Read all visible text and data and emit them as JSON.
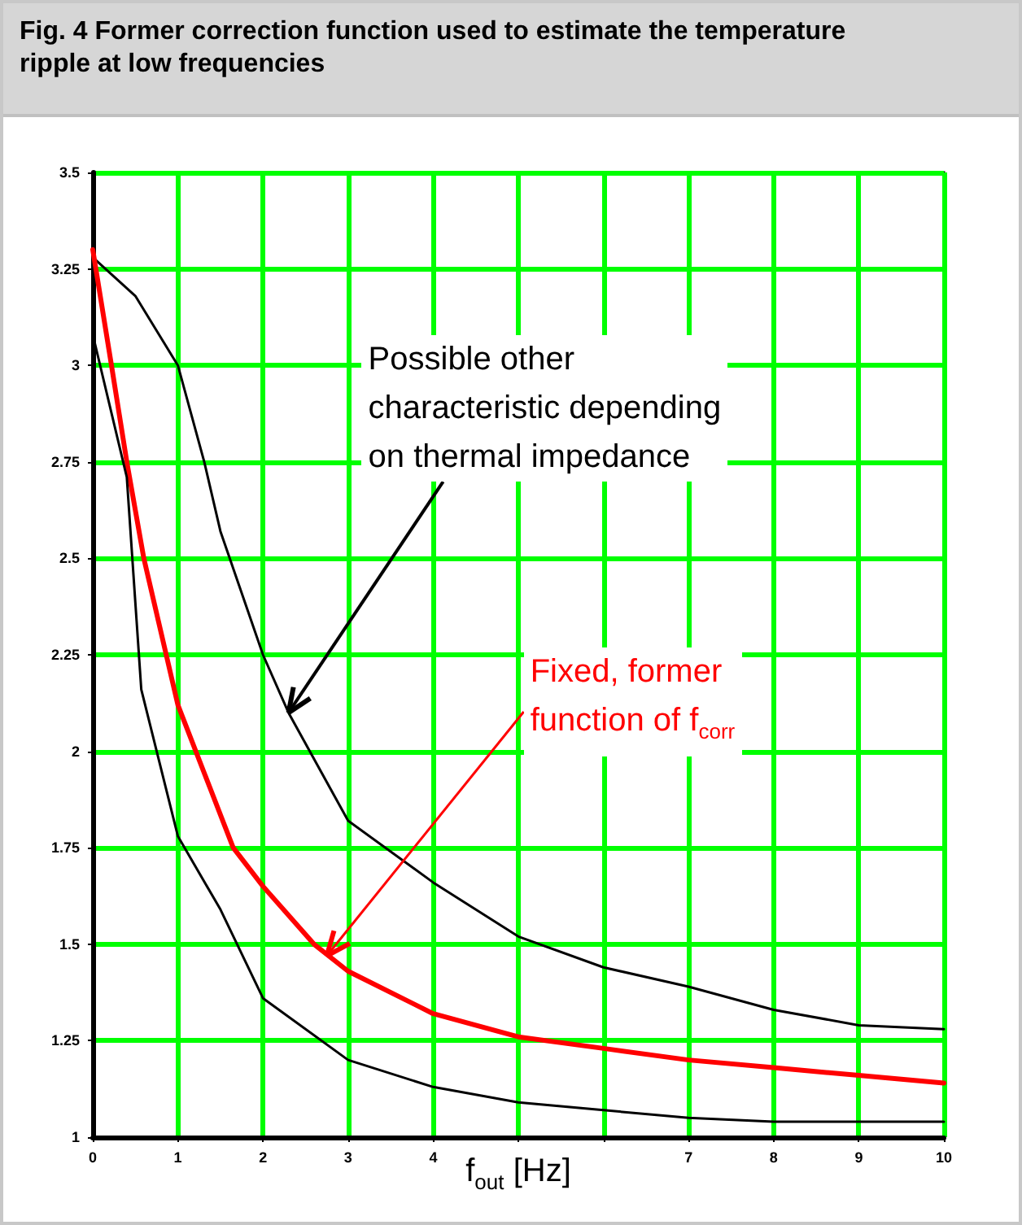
{
  "chart_data": {
    "type": "line",
    "title": "Fig. 4 Former correction function used to estimate the temperature ripple at low frequencies",
    "xlabel": "f$_{out}$ [Hz]",
    "xlim": [
      0,
      10
    ],
    "xticks": [
      0,
      1,
      2,
      3,
      4,
      {
        "value": 5,
        "label": null
      },
      {
        "value": 6,
        "label": null
      },
      7,
      8,
      9,
      10
    ],
    "ylim": [
      1,
      3.5
    ],
    "yticks": [
      1,
      1.25,
      1.5,
      1.75,
      2,
      2.25,
      2.5,
      2.75,
      3,
      3.25,
      3.5
    ],
    "grid": true,
    "marker": "none",
    "line_style": "solid",
    "series": [
      {
        "color": "#000000",
        "x": [
          0,
          0.5,
          1,
          1.31,
          1.5,
          2,
          2.3,
          3,
          4,
          5,
          6,
          7,
          8,
          9,
          10
        ],
        "values": [
          3.28,
          3.18,
          3.0,
          2.75,
          2.57,
          2.25,
          2.1,
          1.82,
          1.66,
          1.52,
          1.44,
          1.39,
          1.33,
          1.29,
          1.28
        ]
      },
      {
        "color": "#ff0000",
        "x": [
          0,
          0.22,
          0.4,
          0.6,
          1,
          1.65,
          2,
          2.6,
          3,
          4,
          5,
          6,
          7,
          8,
          9,
          10
        ],
        "values": [
          3.3,
          3.0,
          2.75,
          2.5,
          2.12,
          1.75,
          1.65,
          1.5,
          1.43,
          1.32,
          1.26,
          1.23,
          1.2,
          1.18,
          1.16,
          1.14
        ]
      },
      {
        "color": "#000000",
        "x": [
          0,
          0.4,
          0.57,
          1,
          1.5,
          2,
          3,
          4,
          5,
          6,
          7,
          8,
          9,
          10
        ],
        "values": [
          3.08,
          2.71,
          2.16,
          1.78,
          1.59,
          1.36,
          1.2,
          1.13,
          1.09,
          1.07,
          1.05,
          1.04,
          1.04,
          1.04
        ]
      }
    ],
    "annotations": [
      {
        "text": "Possible other characteristic depending on thermal impedance",
        "x": 2.3,
        "y": 2.1
      },
      {
        "text": "Fixed, former function of f$_{corr}$",
        "x": 2.75,
        "y": 1.47
      }
    ]
  }
}
